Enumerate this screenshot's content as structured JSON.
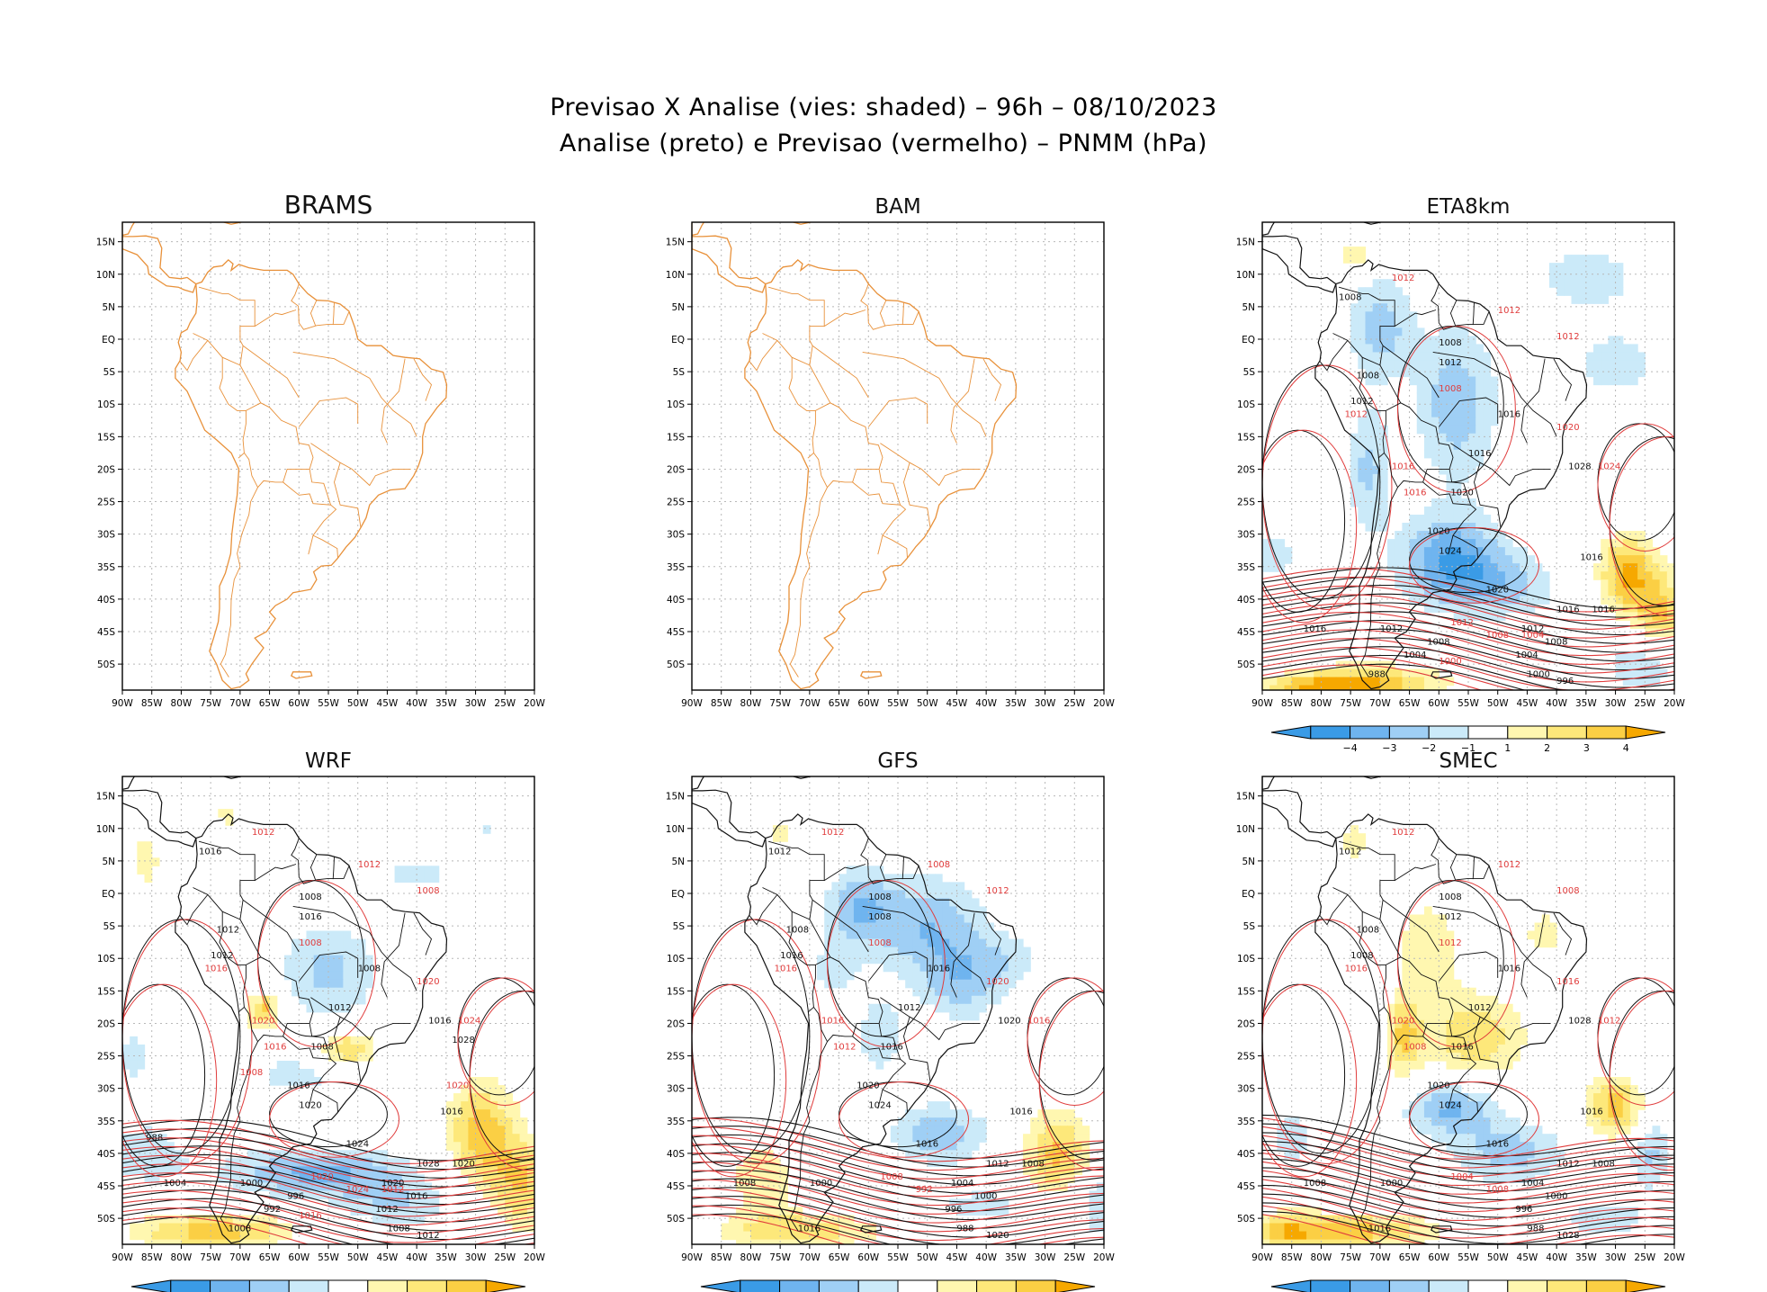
{
  "title": {
    "line1": "Previsao X Analise (vies: shaded) – 96h – 08/10/2023",
    "line2": "Analise (preto) e Previsao (vermelho) – PNMM (hPa)"
  },
  "colors": {
    "coast": "#e8913a",
    "grid": "#b8b8b8",
    "analysis": "#111111",
    "forecast": "#e03c3c",
    "bias_neg": [
      "#3a9be6",
      "#6fb4ef",
      "#9fcff5",
      "#cbeaf9"
    ],
    "bias_pos": [
      "#fff7b0",
      "#fde87a",
      "#fbcf44",
      "#f6a800"
    ]
  },
  "axes": {
    "lat_labels": [
      "15N",
      "10N",
      "5N",
      "EQ",
      "5S",
      "10S",
      "15S",
      "20S",
      "25S",
      "30S",
      "35S",
      "40S",
      "45S",
      "50S"
    ],
    "lon_labels": [
      "90W",
      "85W",
      "80W",
      "75W",
      "70W",
      "65W",
      "60W",
      "55W",
      "50W",
      "45W",
      "40W",
      "35W",
      "30W",
      "25W",
      "20W"
    ]
  },
  "colorbar": {
    "labels": [
      "−4",
      "−3",
      "−2",
      "−1",
      "1",
      "2",
      "3",
      "4"
    ]
  },
  "panels": [
    {
      "model": "BRAMS",
      "shaded": false,
      "colorbar": false,
      "scenario": "none",
      "analysis_labels": [],
      "forecast_labels": []
    },
    {
      "model": "BAM",
      "shaded": false,
      "colorbar": false,
      "scenario": "none",
      "analysis_labels": [],
      "forecast_labels": []
    },
    {
      "model": "ETA8km",
      "shaded": true,
      "colorbar": true,
      "scenario": "eta",
      "analysis_labels": [
        "1008",
        "1008",
        "1008",
        "1012",
        "1012",
        "1016",
        "1016",
        "1020",
        "1020",
        "1024",
        "1028",
        "1016",
        "1020",
        "1016",
        "1016",
        "1012",
        "1008",
        "1004",
        "1000",
        "996",
        "988",
        "1016",
        "1012",
        "1008",
        "1004"
      ],
      "forecast_labels": [
        "1012",
        "1012",
        "1012",
        "1008",
        "1012",
        "1016",
        "1020",
        "1024",
        "1016",
        "1012",
        "1008",
        "1000",
        "1004"
      ]
    },
    {
      "model": "WRF",
      "shaded": true,
      "colorbar": true,
      "scenario": "wrf",
      "analysis_labels": [
        "1016",
        "1012",
        "1008",
        "1016",
        "1012",
        "1008",
        "1012",
        "1008",
        "1016",
        "1020",
        "1016",
        "1016",
        "1024",
        "1028",
        "1020",
        "1020",
        "1016",
        "1012",
        "1008",
        "1012",
        "1008",
        "1004",
        "1000",
        "996",
        "992",
        "988",
        "1028"
      ],
      "forecast_labels": [
        "1012",
        "1012",
        "1008",
        "1008",
        "1016",
        "1020",
        "1020",
        "1024",
        "1016",
        "1020",
        "1024",
        "1016",
        "1012",
        "1008",
        "1020"
      ]
    },
    {
      "model": "GFS",
      "shaded": true,
      "colorbar": true,
      "scenario": "gfs",
      "analysis_labels": [
        "1012",
        "1008",
        "1008",
        "1008",
        "1016",
        "1016",
        "1012",
        "1016",
        "1020",
        "1024",
        "1020",
        "1016",
        "1016",
        "1012",
        "1008",
        "1004",
        "1000",
        "996",
        "988",
        "1020",
        "1016",
        "1008",
        "1000"
      ],
      "forecast_labels": [
        "1012",
        "1008",
        "1012",
        "1008",
        "1016",
        "1016",
        "1020",
        "1016",
        "1012",
        "1008",
        "992"
      ]
    },
    {
      "model": "SMEC",
      "shaded": true,
      "colorbar": true,
      "scenario": "smec",
      "analysis_labels": [
        "1012",
        "1008",
        "1008",
        "1012",
        "1008",
        "1016",
        "1012",
        "1016",
        "1020",
        "1024",
        "1028",
        "1016",
        "1016",
        "1012",
        "1008",
        "1004",
        "1000",
        "996",
        "988",
        "1028",
        "1016",
        "1008",
        "1000"
      ],
      "forecast_labels": [
        "1012",
        "1012",
        "1008",
        "1012",
        "1016",
        "1020",
        "1016",
        "1012",
        "1008",
        "1004",
        "1008"
      ]
    }
  ]
}
